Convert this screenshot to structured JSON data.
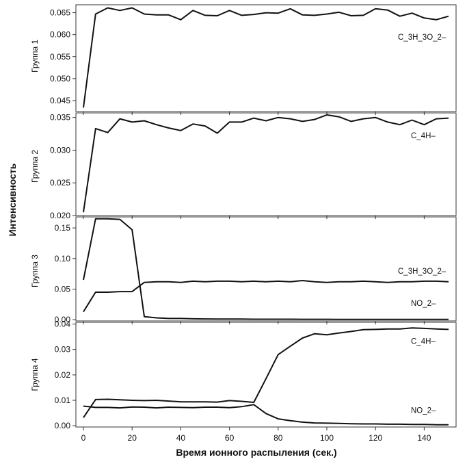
{
  "figure": {
    "ylabel": "Интенсивность",
    "xlabel": "Время ионного распыления (сек.)"
  },
  "chart_data": [
    {
      "type": "line",
      "panel_label": "Группа 1",
      "xlim": [
        0,
        150
      ],
      "ylim": [
        0.0425,
        0.0668
      ],
      "x_ticks": [
        0,
        20,
        40,
        60,
        80,
        100,
        120,
        140
      ],
      "show_x_tick_labels": false,
      "y_ticks": [
        0.045,
        0.05,
        0.055,
        0.06,
        0.065
      ],
      "y_tick_labels": [
        "0.045",
        "0.050",
        "0.055",
        "0.060",
        "0.065"
      ],
      "series": [
        {
          "name": "C_3H_3O_2–",
          "x": [
            0,
            5,
            10,
            15,
            20,
            25,
            30,
            35,
            40,
            45,
            50,
            55,
            60,
            65,
            70,
            75,
            80,
            85,
            90,
            95,
            100,
            105,
            110,
            115,
            120,
            125,
            130,
            135,
            140,
            145,
            150
          ],
          "y": [
            0.0434,
            0.0647,
            0.0661,
            0.0655,
            0.0661,
            0.0647,
            0.0645,
            0.0645,
            0.0634,
            0.0655,
            0.0644,
            0.0643,
            0.0655,
            0.0644,
            0.0646,
            0.065,
            0.0649,
            0.0659,
            0.0645,
            0.0644,
            0.0647,
            0.0651,
            0.0643,
            0.0644,
            0.0659,
            0.0656,
            0.0642,
            0.0649,
            0.0638,
            0.0634,
            0.0642
          ]
        }
      ]
    },
    {
      "type": "line",
      "panel_label": "Группа 2",
      "xlim": [
        0,
        150
      ],
      "ylim": [
        0.02,
        0.0357
      ],
      "x_ticks": [
        0,
        20,
        40,
        60,
        80,
        100,
        120,
        140
      ],
      "show_x_tick_labels": false,
      "y_ticks": [
        0.02,
        0.025,
        0.03,
        0.035
      ],
      "y_tick_labels": [
        "0.020",
        "0.025",
        "0.030",
        "0.035"
      ],
      "series": [
        {
          "name": "C_4H–",
          "x": [
            0,
            5,
            10,
            15,
            20,
            25,
            30,
            35,
            40,
            45,
            50,
            55,
            60,
            65,
            70,
            75,
            80,
            85,
            90,
            95,
            100,
            105,
            110,
            115,
            120,
            125,
            130,
            135,
            140,
            145,
            150
          ],
          "y": [
            0.0205,
            0.0333,
            0.0327,
            0.0348,
            0.0343,
            0.0345,
            0.0339,
            0.0334,
            0.033,
            0.034,
            0.0337,
            0.0326,
            0.0343,
            0.0343,
            0.0349,
            0.0345,
            0.035,
            0.0348,
            0.0344,
            0.0347,
            0.0354,
            0.0351,
            0.0344,
            0.0348,
            0.035,
            0.0343,
            0.0339,
            0.0346,
            0.0339,
            0.0348,
            0.0349
          ]
        }
      ]
    },
    {
      "type": "line",
      "panel_label": "Группа 3",
      "xlim": [
        0,
        150
      ],
      "ylim": [
        -0.002,
        0.168
      ],
      "x_ticks": [
        0,
        20,
        40,
        60,
        80,
        100,
        120,
        140
      ],
      "show_x_tick_labels": false,
      "y_ticks": [
        0.0,
        0.05,
        0.1,
        0.15
      ],
      "y_tick_labels": [
        "0.00",
        "0.05",
        "0.10",
        "0.15"
      ],
      "series": [
        {
          "name": "C_3H_3O_2–",
          "x": [
            0,
            5,
            10,
            15,
            20,
            25,
            30,
            35,
            40,
            45,
            50,
            55,
            60,
            65,
            70,
            75,
            80,
            85,
            90,
            95,
            100,
            105,
            110,
            115,
            120,
            125,
            130,
            135,
            140,
            145,
            150
          ],
          "y": [
            0.013,
            0.045,
            0.045,
            0.046,
            0.046,
            0.061,
            0.062,
            0.062,
            0.061,
            0.063,
            0.062,
            0.063,
            0.063,
            0.062,
            0.063,
            0.062,
            0.063,
            0.062,
            0.064,
            0.062,
            0.061,
            0.062,
            0.062,
            0.063,
            0.062,
            0.061,
            0.062,
            0.062,
            0.063,
            0.063,
            0.062
          ]
        },
        {
          "name": "NO_2–",
          "x": [
            0,
            5,
            10,
            15,
            20,
            25,
            30,
            35,
            40,
            45,
            50,
            55,
            60,
            65,
            70,
            75,
            80,
            85,
            90,
            95,
            100,
            105,
            110,
            115,
            120,
            125,
            130,
            135,
            140,
            145,
            150
          ],
          "y": [
            0.065,
            0.165,
            0.165,
            0.164,
            0.147,
            0.005,
            0.003,
            0.002,
            0.002,
            0.0015,
            0.0012,
            0.001,
            0.001,
            0.001,
            0.0008,
            0.0008,
            0.0008,
            0.0008,
            0.0007,
            0.0007,
            0.0007,
            0.0006,
            0.0006,
            0.0006,
            0.0006,
            0.0005,
            0.0005,
            0.0005,
            0.0005,
            0.0005,
            0.0005
          ]
        }
      ]
    },
    {
      "type": "line",
      "panel_label": "Группа 4",
      "xlim": [
        0,
        150
      ],
      "ylim": [
        -0.0005,
        0.0407
      ],
      "x_ticks": [
        0,
        20,
        40,
        60,
        80,
        100,
        120,
        140
      ],
      "x_tick_labels": [
        "0",
        "20",
        "40",
        "60",
        "80",
        "100",
        "120",
        "140"
      ],
      "show_x_tick_labels": true,
      "y_ticks": [
        0.0,
        0.01,
        0.02,
        0.03,
        0.04
      ],
      "y_tick_labels": [
        "0.00",
        "0.01",
        "0.02",
        "0.03",
        "0.04"
      ],
      "series": [
        {
          "name": "C_4H–",
          "x": [
            0,
            5,
            10,
            15,
            20,
            25,
            30,
            35,
            40,
            45,
            50,
            55,
            60,
            65,
            70,
            75,
            80,
            85,
            90,
            95,
            100,
            105,
            110,
            115,
            120,
            125,
            130,
            135,
            140,
            145,
            150
          ],
          "y": [
            0.0032,
            0.0103,
            0.0104,
            0.0102,
            0.01,
            0.0099,
            0.01,
            0.0097,
            0.0094,
            0.0094,
            0.0094,
            0.0093,
            0.0099,
            0.0096,
            0.0092,
            0.0185,
            0.028,
            0.0313,
            0.0345,
            0.0362,
            0.0358,
            0.0365,
            0.0371,
            0.0378,
            0.0379,
            0.0381,
            0.0381,
            0.0385,
            0.0383,
            0.0381,
            0.0379
          ]
        },
        {
          "name": "NO_2–",
          "x": [
            0,
            5,
            10,
            15,
            20,
            25,
            30,
            35,
            40,
            45,
            50,
            55,
            60,
            65,
            70,
            75,
            80,
            85,
            90,
            95,
            100,
            105,
            110,
            115,
            120,
            125,
            130,
            135,
            140,
            145,
            150
          ],
          "y": [
            0.0077,
            0.0072,
            0.0072,
            0.007,
            0.0074,
            0.0073,
            0.007,
            0.0073,
            0.0072,
            0.0071,
            0.0073,
            0.0073,
            0.0071,
            0.0075,
            0.0083,
            0.0048,
            0.0027,
            0.002,
            0.0014,
            0.0011,
            0.001,
            0.0009,
            0.0008,
            0.0007,
            0.0007,
            0.0006,
            0.0006,
            0.0005,
            0.0005,
            0.0004,
            0.0004
          ]
        }
      ]
    }
  ]
}
